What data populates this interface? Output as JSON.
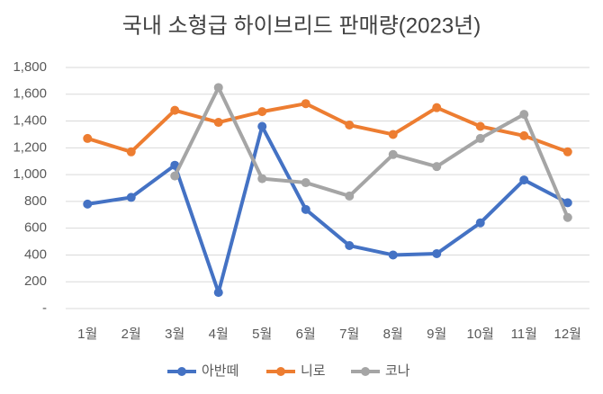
{
  "chart_data": {
    "type": "line",
    "title": "국내 소형급 하이브리드 판매량(2023년)",
    "categories": [
      "1월",
      "2월",
      "3월",
      "4월",
      "5월",
      "6월",
      "7월",
      "8월",
      "9월",
      "10월",
      "11월",
      "12월"
    ],
    "series": [
      {
        "name": "아반떼",
        "color": "#4472c4",
        "values": [
          780,
          830,
          1070,
          120,
          1360,
          740,
          470,
          400,
          410,
          640,
          960,
          790
        ]
      },
      {
        "name": "니로",
        "color": "#ed7d31",
        "values": [
          1270,
          1170,
          1480,
          1390,
          1470,
          1530,
          1370,
          1300,
          1500,
          1360,
          1290,
          1170
        ]
      },
      {
        "name": "코나",
        "color": "#a5a5a5",
        "values": [
          null,
          null,
          990,
          1650,
          970,
          940,
          840,
          1150,
          1060,
          1270,
          1450,
          680
        ]
      }
    ],
    "ylim": [
      0,
      1800
    ],
    "yticks": [
      {
        "value": 0,
        "label": "-"
      },
      200,
      400,
      600,
      800,
      {
        "value": 1000,
        "label": "1,000"
      },
      {
        "value": 1200,
        "label": "1,200"
      },
      {
        "value": 1400,
        "label": "1,400"
      },
      {
        "value": 1600,
        "label": "1,600"
      },
      {
        "value": 1800,
        "label": "1,800"
      }
    ],
    "grid": true,
    "legend": "bottom"
  }
}
